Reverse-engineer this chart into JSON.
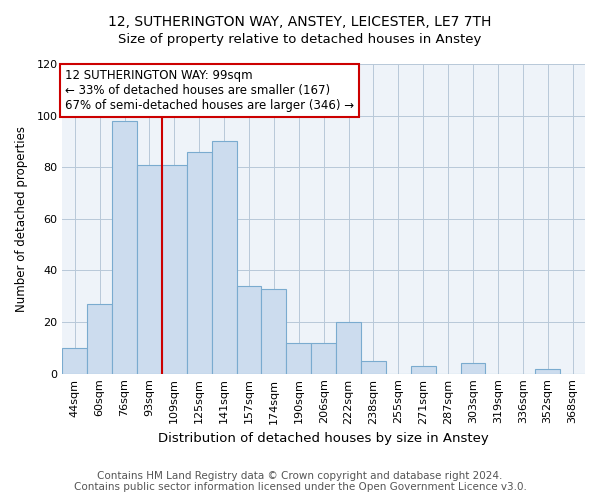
{
  "title": "12, SUTHERINGTON WAY, ANSTEY, LEICESTER, LE7 7TH",
  "subtitle": "Size of property relative to detached houses in Anstey",
  "xlabel": "Distribution of detached houses by size in Anstey",
  "ylabel": "Number of detached properties",
  "bin_labels": [
    "44sqm",
    "60sqm",
    "76sqm",
    "93sqm",
    "109sqm",
    "125sqm",
    "141sqm",
    "157sqm",
    "174sqm",
    "190sqm",
    "206sqm",
    "222sqm",
    "238sqm",
    "255sqm",
    "271sqm",
    "287sqm",
    "303sqm",
    "319sqm",
    "336sqm",
    "352sqm",
    "368sqm"
  ],
  "bar_heights": [
    10,
    27,
    98,
    81,
    81,
    86,
    90,
    34,
    33,
    12,
    12,
    20,
    5,
    0,
    3,
    0,
    4,
    0,
    0,
    2,
    0
  ],
  "bar_color": "#ccdcee",
  "bar_edge_color": "#7aabcf",
  "vline_color": "#cc0000",
  "annotation_text": "12 SUTHERINGTON WAY: 99sqm\n← 33% of detached houses are smaller (167)\n67% of semi-detached houses are larger (346) →",
  "annotation_box_color": "#ffffff",
  "annotation_box_edge_color": "#cc0000",
  "ylim": [
    0,
    120
  ],
  "yticks": [
    0,
    20,
    40,
    60,
    80,
    100,
    120
  ],
  "footer1": "Contains HM Land Registry data © Crown copyright and database right 2024.",
  "footer2": "Contains public sector information licensed under the Open Government Licence v3.0.",
  "title_fontsize": 10,
  "subtitle_fontsize": 9.5,
  "xlabel_fontsize": 9.5,
  "ylabel_fontsize": 8.5,
  "tick_fontsize": 8,
  "annotation_fontsize": 8.5,
  "footer_fontsize": 7.5
}
